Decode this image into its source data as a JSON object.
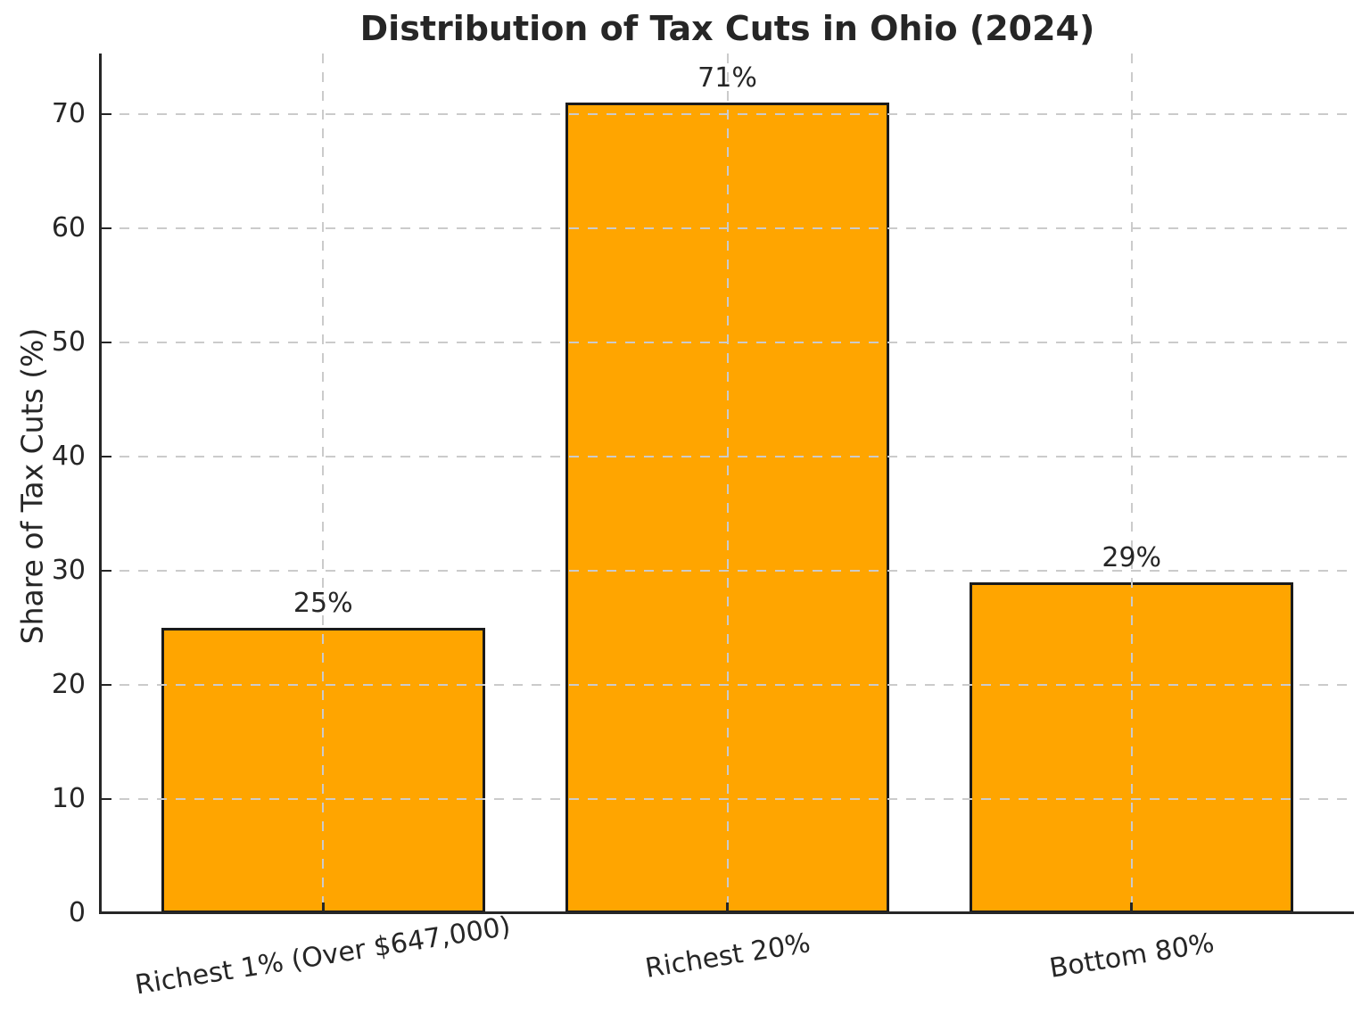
{
  "chart_data": {
    "type": "bar",
    "title": "Distribution of Tax Cuts in Ohio (2024)",
    "xlabel": "",
    "ylabel": "Share of Tax Cuts (%)",
    "categories": [
      "Richest 1% (Over $647,000)",
      "Richest 20%",
      "Bottom 80%"
    ],
    "values": [
      25,
      71,
      29
    ],
    "value_labels": [
      "25%",
      "71%",
      "29%"
    ],
    "yticks": [
      0,
      10,
      20,
      30,
      40,
      50,
      60,
      70
    ],
    "ytick_labels": [
      "0",
      "10",
      "20",
      "30",
      "40",
      "50",
      "60",
      "70"
    ],
    "ylim": [
      0,
      75.3
    ],
    "grid": true,
    "grid_style": "dashed",
    "grid_over_bars": true,
    "legend": "none",
    "colors": {
      "bar_fill": "#FFA500",
      "bar_edge": "#1A1A1A",
      "grid": "#CBCBCB",
      "text": "#262626",
      "axis": "#262626",
      "background": "#FFFFFF"
    }
  }
}
